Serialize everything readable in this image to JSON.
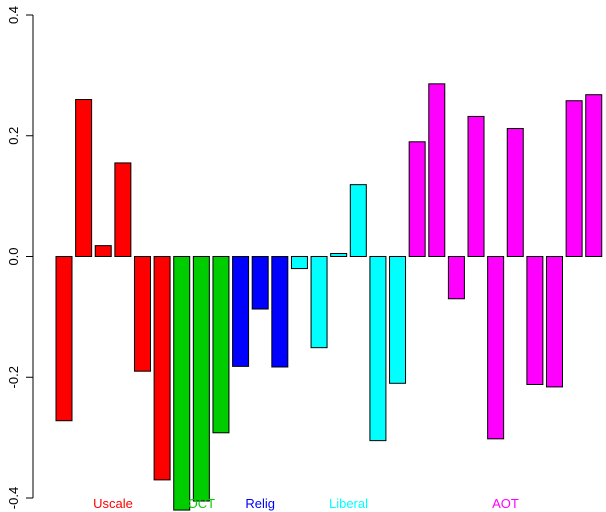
{
  "chart_data": {
    "type": "bar",
    "title": "",
    "xlabel": "",
    "ylabel": "",
    "ylim": [
      -0.4,
      0.4
    ],
    "yticks": [
      -0.4,
      -0.2,
      0.0,
      0.2,
      0.4
    ],
    "ytick_labels": [
      "-0.4",
      "-0.2",
      "0.0",
      "0.2",
      "0.4"
    ],
    "grid": false,
    "values": [
      -0.272,
      0.26,
      0.018,
      0.155,
      -0.19,
      -0.37,
      -0.42,
      -0.405,
      -0.292,
      -0.182,
      -0.087,
      -0.183,
      -0.02,
      -0.151,
      0.005,
      0.119,
      -0.305,
      -0.21,
      0.19,
      0.286,
      -0.07,
      0.232,
      -0.302,
      0.212,
      -0.212,
      -0.216,
      0.258,
      0.268
    ],
    "bar_colors": [
      "#ff0000",
      "#ff0000",
      "#ff0000",
      "#ff0000",
      "#ff0000",
      "#ff0000",
      "#00cd00",
      "#00cd00",
      "#00cd00",
      "#0000ff",
      "#0000ff",
      "#0000ff",
      "#00ffff",
      "#00ffff",
      "#00ffff",
      "#00ffff",
      "#00ffff",
      "#00ffff",
      "#ff00ff",
      "#ff00ff",
      "#ff00ff",
      "#ff00ff",
      "#ff00ff",
      "#ff00ff",
      "#ff00ff",
      "#ff00ff",
      "#ff00ff",
      "#ff00ff"
    ],
    "groups": [
      {
        "label": "Uscale",
        "color": "#ff0000",
        "start": 0,
        "end": 5
      },
      {
        "label": "OCT",
        "color": "#00cd00",
        "start": 6,
        "end": 8
      },
      {
        "label": "Relig",
        "color": "#0000ff",
        "start": 9,
        "end": 11
      },
      {
        "label": "Liberal",
        "color": "#00ffff",
        "start": 12,
        "end": 17
      },
      {
        "label": "AOT",
        "color": "#ff00ff",
        "start": 18,
        "end": 27
      }
    ]
  }
}
